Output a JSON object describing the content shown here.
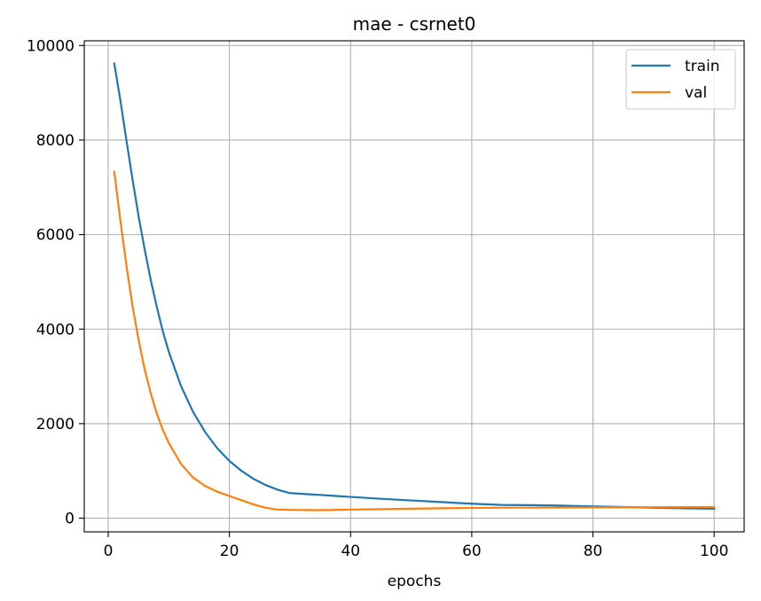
{
  "chart_data": {
    "type": "line",
    "title": "mae - csrnet0",
    "xlabel": "epochs",
    "ylabel": "",
    "xlim": [
      -3.95,
      104.95
    ],
    "ylim": [
      -290,
      10100
    ],
    "xticks": [
      0,
      20,
      40,
      60,
      80,
      100
    ],
    "yticks": [
      0,
      2000,
      4000,
      6000,
      8000,
      10000
    ],
    "xtick_labels": [
      "0",
      "20",
      "40",
      "60",
      "80",
      "100"
    ],
    "ytick_labels": [
      "0",
      "2000",
      "4000",
      "6000",
      "8000",
      "10000"
    ],
    "grid": true,
    "legend_position": "upper right",
    "series": [
      {
        "name": "train",
        "color": "#1f77b4",
        "x": [
          1,
          2,
          3,
          4,
          5,
          6,
          7,
          8,
          9,
          10,
          12,
          14,
          16,
          18,
          20,
          22,
          24,
          26,
          28,
          30,
          35,
          40,
          45,
          50,
          55,
          60,
          65,
          70,
          75,
          80,
          85,
          90,
          95,
          100
        ],
        "y": [
          9620,
          8850,
          8000,
          7180,
          6400,
          5700,
          5050,
          4480,
          3960,
          3520,
          2800,
          2250,
          1820,
          1480,
          1210,
          1000,
          830,
          700,
          600,
          530,
          490,
          450,
          410,
          375,
          340,
          305,
          280,
          275,
          265,
          250,
          235,
          220,
          210,
          200
        ]
      },
      {
        "name": "val",
        "color": "#ff7f0e",
        "x": [
          1,
          2,
          3,
          4,
          5,
          6,
          7,
          8,
          9,
          10,
          12,
          14,
          16,
          18,
          20,
          22,
          24,
          26,
          28,
          30,
          35,
          40,
          45,
          50,
          55,
          60,
          65,
          70,
          75,
          80,
          85,
          90,
          95,
          100
        ],
        "y": [
          7330,
          6300,
          5350,
          4500,
          3780,
          3160,
          2650,
          2220,
          1870,
          1590,
          1150,
          860,
          680,
          560,
          470,
          380,
          290,
          220,
          180,
          175,
          170,
          180,
          190,
          200,
          210,
          215,
          220,
          222,
          225,
          228,
          230,
          232,
          234,
          235
        ]
      }
    ]
  }
}
